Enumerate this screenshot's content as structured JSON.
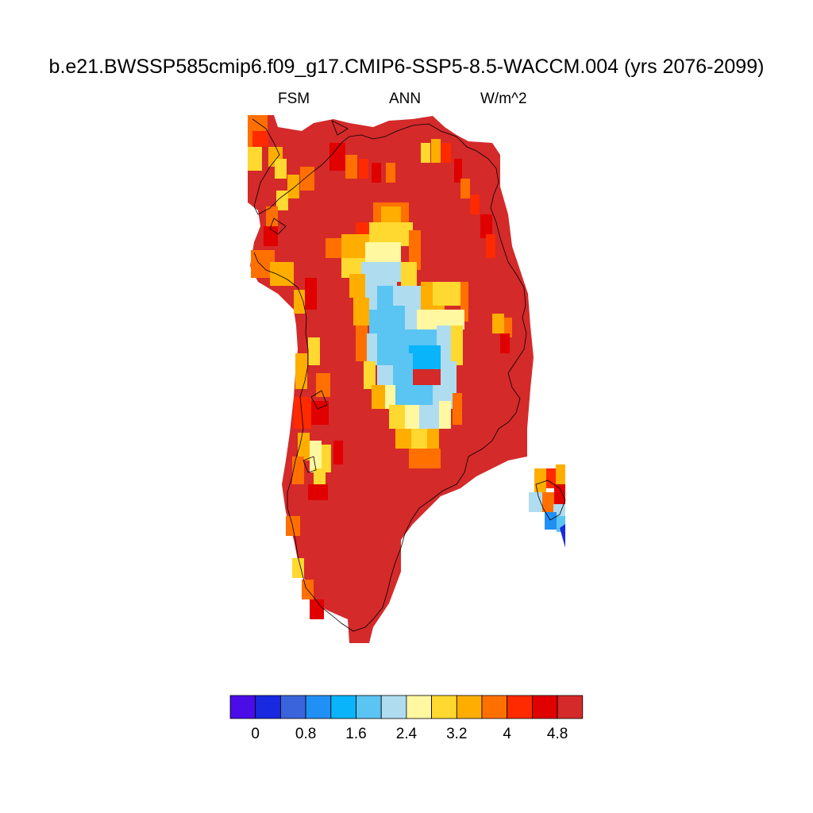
{
  "title": "b.e21.BWSSP585cmip6.f09_g17.CMIP6-SSP5-8.5-WACCM.004 (yrs 2076-2099)",
  "subtitle": {
    "left": "FSM",
    "center": "ANN",
    "right": "W/m^2"
  },
  "colorbar": {
    "colors": [
      "#4a0de8",
      "#1829e0",
      "#3a64dc",
      "#2090f4",
      "#0ab4fa",
      "#5ac4f2",
      "#b0dcf0",
      "#fff8a0",
      "#ffd830",
      "#ffae00",
      "#ff7000",
      "#ff2a00",
      "#e00000",
      "#d42a2a"
    ],
    "tick_labels": [
      "0",
      "0.8",
      "1.6",
      "2.4",
      "3.2",
      "4",
      "4.8"
    ]
  }
}
